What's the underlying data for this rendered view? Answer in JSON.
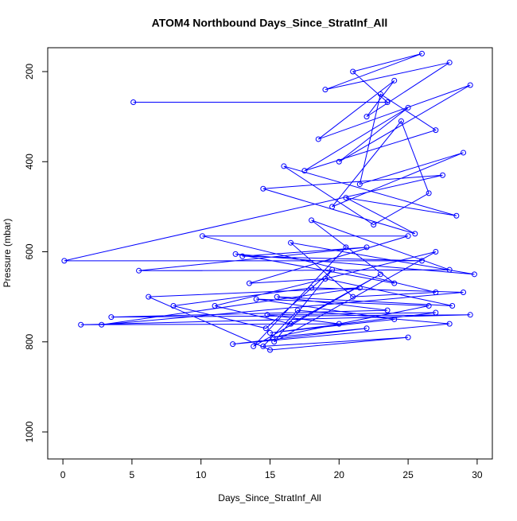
{
  "chart_data": {
    "type": "line",
    "title": "ATOM4 Northbound Days_Since_StratInf_All",
    "xlabel": "Days_Since_StratInf_All",
    "ylabel": "Pressure (mbar)",
    "color": "#0000ff",
    "markers": true,
    "xlim": [
      -1.1,
      31.1
    ],
    "ylim": [
      1060,
      147
    ],
    "xticks": [
      0,
      5,
      10,
      15,
      20,
      25,
      30
    ],
    "yticks": [
      200,
      400,
      600,
      800,
      1000
    ],
    "x": [
      5.1,
      23.5,
      21,
      26,
      19,
      28,
      22,
      24,
      18.5,
      29.5,
      20,
      25,
      17.5,
      27,
      23,
      21.5,
      29,
      19.5,
      24.5,
      26.5,
      22.5,
      16,
      28.5,
      20.5,
      25.5,
      14.5,
      27.5,
      0.1,
      26,
      13,
      22,
      5.5,
      28,
      18,
      24,
      12.5,
      29.8,
      16.5,
      21,
      27,
      10.1,
      25,
      13.5,
      19,
      28.2,
      15.5,
      23.5,
      3.5,
      29.5,
      1.3,
      20,
      14.8,
      27,
      15,
      24,
      14,
      26.5,
      15.2,
      22,
      12.3,
      28,
      17,
      14.5,
      25,
      15,
      6.2,
      21.5,
      2.8,
      29,
      18,
      8,
      14.7,
      19.5,
      15.3,
      27,
      11,
      16.5,
      23,
      13.8,
      20.5
    ],
    "values": [
      268,
      268,
      200,
      160,
      240,
      180,
      300,
      220,
      350,
      230,
      400,
      280,
      420,
      330,
      250,
      450,
      380,
      500,
      310,
      470,
      540,
      410,
      520,
      480,
      560,
      460,
      430,
      620,
      620,
      610,
      590,
      642,
      640,
      530,
      670,
      605,
      650,
      580,
      700,
      690,
      565,
      565,
      670,
      660,
      720,
      700,
      730,
      745,
      740,
      762,
      760,
      740,
      735,
      780,
      750,
      705,
      720,
      790,
      770,
      805,
      760,
      730,
      810,
      790,
      818,
      700,
      680,
      762,
      690,
      680,
      720,
      770,
      640,
      800,
      600,
      720,
      760,
      650,
      810,
      590
    ]
  }
}
